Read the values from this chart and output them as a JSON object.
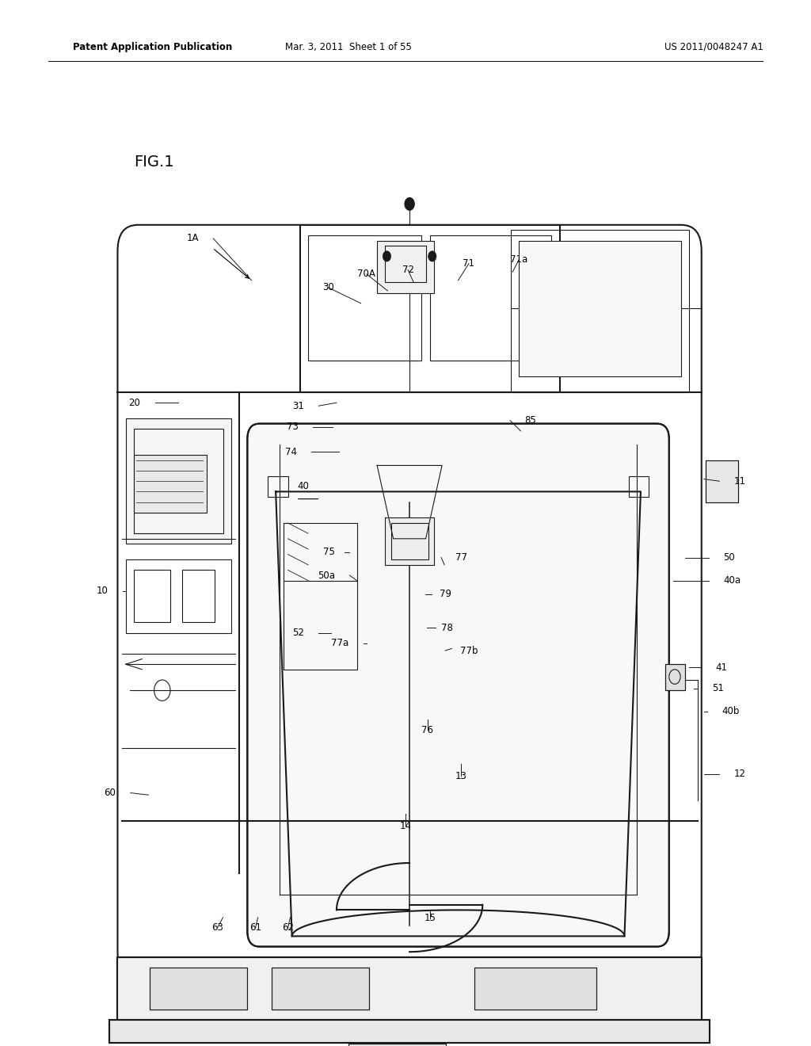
{
  "bg_color": "#ffffff",
  "line_color": "#1a1a1a",
  "header_left": "Patent Application Publication",
  "header_mid": "Mar. 3, 2011  Sheet 1 of 55",
  "header_right": "US 2011/0048247 A1",
  "fig_label": "FIG.1"
}
